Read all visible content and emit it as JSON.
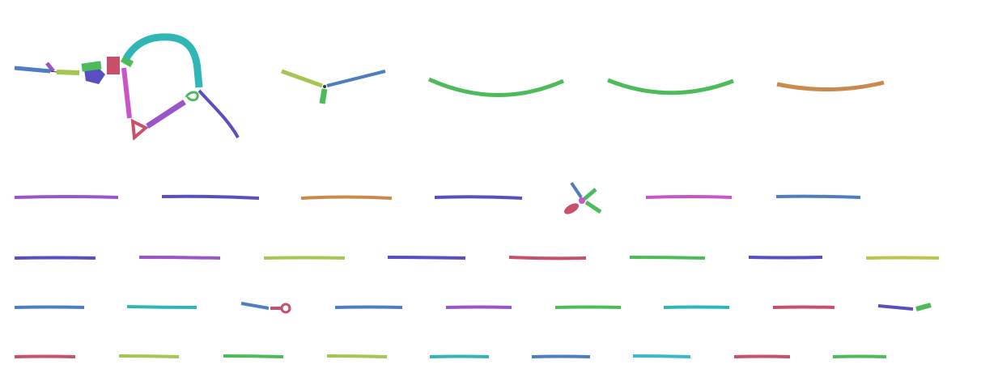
{
  "palette": {
    "blue": "#4e7dc0",
    "indigo": "#5a4fc0",
    "purple": "#9a55c8",
    "magenta": "#c856c8",
    "green": "#4cbb5a",
    "lime": "#a6c652",
    "olive": "#b9c649",
    "teal": "#31b6b8",
    "cyan": "#39b9c9",
    "orange": "#c98a4e",
    "red": "#c8506a",
    "violet": "#6a4fc8"
  },
  "components": [
    {
      "id": "complex-network",
      "kind": "graph"
    },
    {
      "id": "three-branch",
      "kind": "junction"
    },
    {
      "id": "cross-branch",
      "kind": "junction"
    },
    {
      "id": "hairpin-1",
      "kind": "hairpin"
    },
    {
      "id": "hairpin-2",
      "kind": "hairpin"
    }
  ],
  "strands": {
    "row_arcs": [
      "green",
      "green",
      "orange"
    ],
    "row_2": [
      "purple",
      "indigo",
      "orange",
      "indigo",
      "magenta",
      "blue"
    ],
    "row_3": [
      "indigo",
      "purple",
      "lime",
      "indigo",
      "red",
      "green",
      "indigo",
      "olive"
    ],
    "row_4": [
      "blue",
      "teal",
      "blue",
      "purple",
      "green",
      "teal",
      "red"
    ],
    "row_5": [
      "red",
      "lime",
      "green",
      "lime",
      "teal",
      "blue",
      "cyan",
      "red",
      "green"
    ]
  }
}
